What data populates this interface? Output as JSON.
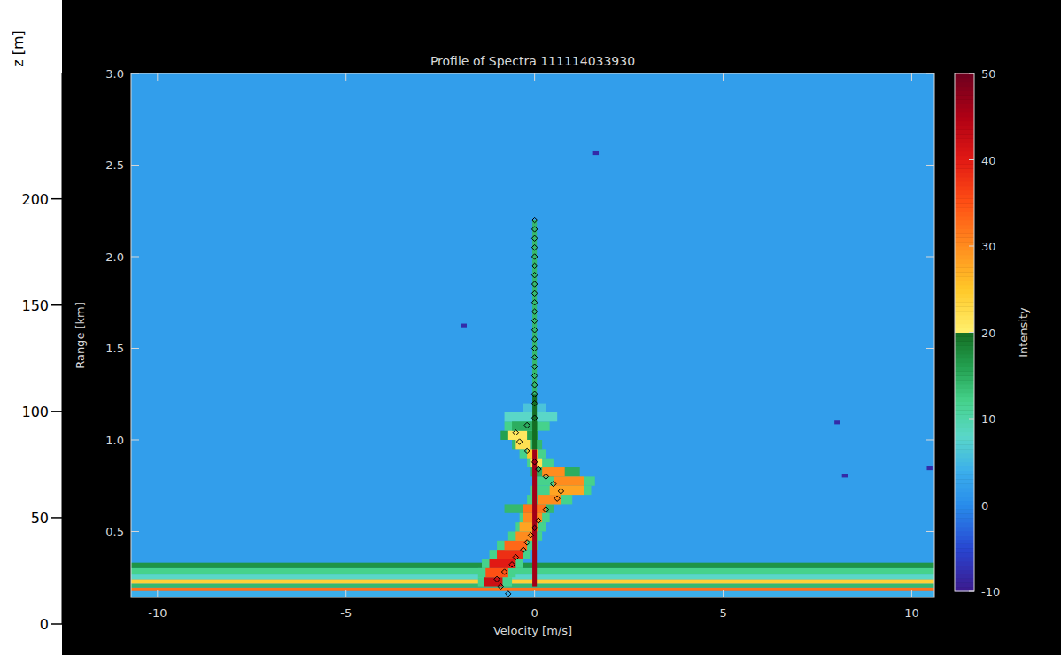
{
  "chart_data": {
    "type": "heatmap",
    "title": "Profile of Spectra 111114033930",
    "x_label": "Velocity [m/s]",
    "y_label": "Range [km]",
    "y2_label": "z [m]",
    "xlim": [
      -10.7,
      10.6
    ],
    "xticks": [
      -10,
      -5,
      0,
      5,
      10
    ],
    "ylim": [
      0.14,
      3.0
    ],
    "yticks": [
      0.5,
      {
        "value": 1,
        "label": "1.0"
      },
      1.5,
      {
        "value": 2,
        "label": "2.0"
      },
      2.5,
      {
        "value": 3,
        "label": "3.0"
      }
    ],
    "y2lim": [
      0,
      259
    ],
    "y2ticks": [
      0,
      50,
      100,
      150,
      200
    ],
    "colorbar": {
      "label": "Intensity",
      "range": [
        -10,
        50
      ],
      "ticks": [
        -10,
        0,
        10,
        20,
        30,
        40,
        50
      ]
    },
    "cells": [
      [
        -10.7,
        10.6,
        0.14,
        3.0,
        2
      ],
      [
        -10.7,
        10.6,
        0.14,
        0.175,
        4
      ],
      [
        -10.7,
        10.6,
        0.175,
        0.195,
        32
      ],
      [
        -10.7,
        10.6,
        0.195,
        0.215,
        14
      ],
      [
        -10.7,
        10.6,
        0.215,
        0.24,
        24
      ],
      [
        -10.7,
        10.6,
        0.24,
        0.265,
        8
      ],
      [
        -10.7,
        10.6,
        0.265,
        0.3,
        12
      ],
      [
        -10.7,
        10.6,
        0.3,
        0.33,
        17
      ],
      [
        -1.5,
        -0.6,
        0.2,
        0.25,
        12
      ],
      [
        -1.5,
        -0.5,
        0.25,
        0.3,
        12
      ],
      [
        -1.4,
        -0.3,
        0.3,
        0.35,
        12
      ],
      [
        -1.2,
        -0.1,
        0.35,
        0.4,
        12
      ],
      [
        -1.0,
        0.1,
        0.4,
        0.45,
        12
      ],
      [
        -0.7,
        0.2,
        0.45,
        0.5,
        12
      ],
      [
        -0.5,
        0.3,
        0.5,
        0.55,
        12
      ],
      [
        -0.4,
        0.4,
        0.55,
        0.6,
        12
      ],
      [
        -0.8,
        0.5,
        0.6,
        0.65,
        14
      ],
      [
        -0.2,
        1.0,
        0.65,
        0.7,
        12
      ],
      [
        -0.1,
        1.5,
        0.7,
        0.75,
        12
      ],
      [
        0.0,
        1.6,
        0.75,
        0.8,
        12
      ],
      [
        -0.1,
        1.2,
        0.8,
        0.85,
        15
      ],
      [
        -0.2,
        0.5,
        0.85,
        0.9,
        12
      ],
      [
        -0.4,
        0.3,
        0.9,
        0.95,
        12
      ],
      [
        -0.6,
        0.2,
        0.95,
        1.0,
        14
      ],
      [
        -0.9,
        0.1,
        1.0,
        1.05,
        16
      ],
      [
        -0.8,
        0.4,
        1.05,
        1.1,
        12
      ],
      [
        -0.8,
        0.6,
        1.1,
        1.15,
        8
      ],
      [
        -0.3,
        0.3,
        1.15,
        1.2,
        6
      ],
      [
        -1.35,
        -0.85,
        0.2,
        0.25,
        42
      ],
      [
        -1.3,
        -0.7,
        0.25,
        0.3,
        35
      ],
      [
        -1.2,
        -0.5,
        0.3,
        0.35,
        40
      ],
      [
        -1.0,
        -0.3,
        0.35,
        0.4,
        38
      ],
      [
        -0.8,
        -0.2,
        0.4,
        0.45,
        33
      ],
      [
        -0.5,
        0.0,
        0.45,
        0.5,
        30
      ],
      [
        -0.4,
        0.1,
        0.5,
        0.55,
        28
      ],
      [
        -0.3,
        0.2,
        0.55,
        0.6,
        30
      ],
      [
        -0.3,
        0.3,
        0.6,
        0.65,
        32
      ],
      [
        0.1,
        0.7,
        0.65,
        0.7,
        30
      ],
      [
        0.4,
        1.3,
        0.7,
        0.75,
        28
      ],
      [
        0.5,
        1.3,
        0.75,
        0.8,
        30
      ],
      [
        0.2,
        0.8,
        0.8,
        0.85,
        30
      ],
      [
        -0.1,
        0.2,
        0.85,
        0.9,
        22
      ],
      [
        -0.2,
        0.1,
        0.9,
        0.95,
        25
      ],
      [
        -0.5,
        -0.1,
        0.95,
        1.0,
        22
      ],
      [
        -0.7,
        -0.2,
        1.0,
        1.05,
        21
      ],
      [
        -0.6,
        0.1,
        1.05,
        1.1,
        15
      ],
      [
        -0.06,
        0.06,
        0.2,
        0.95,
        46
      ],
      [
        -0.06,
        0.06,
        0.95,
        1.25,
        20
      ],
      [
        -0.06,
        0.06,
        1.25,
        2.2,
        14
      ],
      [
        1.55,
        1.7,
        2.555,
        2.575,
        -8
      ],
      [
        -1.95,
        -1.8,
        1.615,
        1.635,
        -8
      ],
      [
        7.95,
        8.1,
        1.085,
        1.105,
        -8
      ],
      [
        8.15,
        8.3,
        0.795,
        0.815,
        -8
      ],
      [
        10.4,
        10.55,
        0.835,
        0.855,
        -8
      ]
    ],
    "series": [
      {
        "type": "scatter",
        "marker": "diamond",
        "color": "#000000",
        "x": [
          -0.7,
          -0.9,
          -1.0,
          -0.8,
          -0.6,
          -0.5,
          -0.3,
          -0.2,
          -0.1,
          0.0,
          0.1,
          0.3,
          0.6,
          0.7,
          0.5,
          0.3,
          0.1,
          0.0,
          -0.2,
          -0.4,
          -0.5,
          -0.2,
          0.0,
          0,
          0,
          0,
          0,
          0,
          0,
          0,
          0,
          0,
          0,
          0,
          0,
          0,
          0,
          0,
          0,
          0,
          0,
          0,
          0,
          0
        ],
        "y": [
          0.16,
          0.2,
          0.24,
          0.28,
          0.32,
          0.36,
          0.4,
          0.44,
          0.48,
          0.52,
          0.56,
          0.62,
          0.68,
          0.72,
          0.76,
          0.8,
          0.84,
          0.88,
          0.94,
          0.99,
          1.04,
          1.08,
          1.12,
          1.2,
          1.25,
          1.3,
          1.35,
          1.4,
          1.45,
          1.5,
          1.55,
          1.6,
          1.65,
          1.7,
          1.75,
          1.8,
          1.85,
          1.9,
          1.95,
          2.0,
          2.05,
          2.1,
          2.15,
          2.2
        ]
      }
    ]
  }
}
